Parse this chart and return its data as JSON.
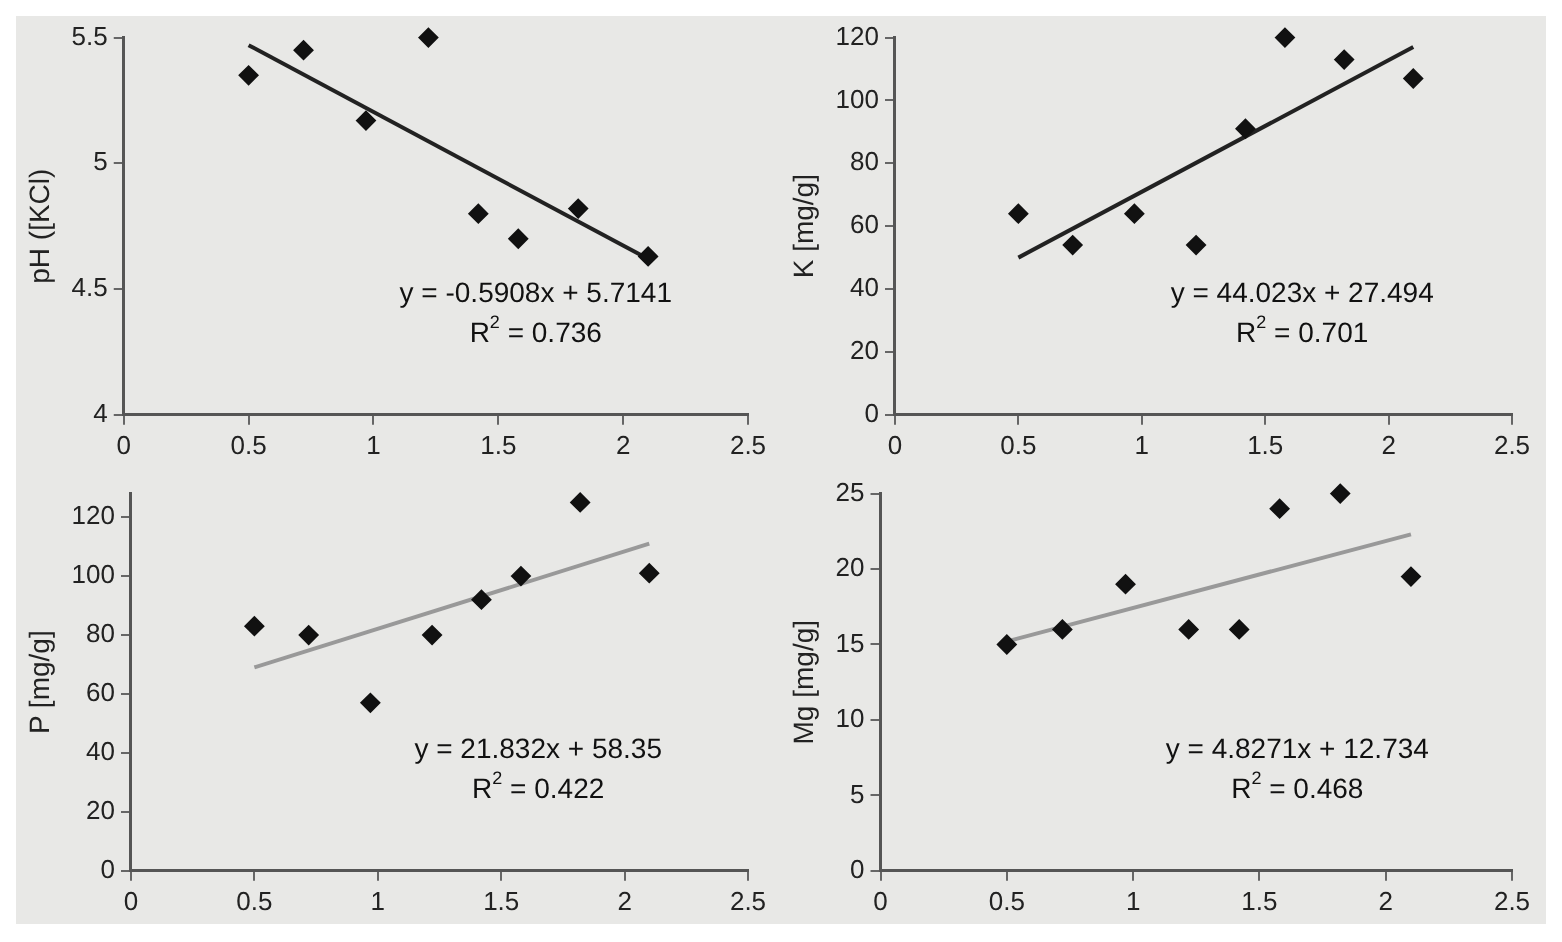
{
  "chart_data": [
    {
      "type": "scatter",
      "ylabel": "pH ([KCl)",
      "xlim": [
        0,
        2.5
      ],
      "xticks": [
        0,
        0.5,
        1,
        1.5,
        2,
        2.5
      ],
      "ylim": [
        4,
        5.5
      ],
      "yticks": [
        4,
        4.5,
        5,
        5.5
      ],
      "grid": false,
      "legend": false,
      "annotations": [
        "y = -0.5908x + 5.7141",
        "R$^{2}$ = 0.736"
      ],
      "series": [
        {
          "marker": "diamond",
          "color": "#111111",
          "x": [
            0.5,
            0.72,
            0.97,
            1.22,
            1.42,
            1.58,
            1.82,
            2.1
          ],
          "values": [
            5.35,
            5.45,
            5.17,
            5.5,
            4.8,
            4.7,
            4.82,
            4.63
          ]
        },
        {
          "type": "line",
          "marker": "none",
          "color": "#222222",
          "x": [
            0.5,
            2.1
          ],
          "values": [
            5.47,
            4.62
          ]
        }
      ]
    },
    {
      "type": "scatter",
      "ylabel": "K [mg/g]",
      "xlim": [
        0,
        2.5
      ],
      "xticks": [
        0,
        0.5,
        1,
        1.5,
        2,
        2.5
      ],
      "ylim": [
        0,
        120
      ],
      "yticks": [
        0,
        20,
        40,
        60,
        80,
        100,
        120
      ],
      "grid": false,
      "legend": false,
      "annotations": [
        "y = 44.023x + 27.494",
        "R$^{2}$ = 0.701"
      ],
      "series": [
        {
          "marker": "diamond",
          "color": "#111111",
          "x": [
            0.5,
            0.72,
            0.97,
            1.22,
            1.42,
            1.58,
            1.82,
            2.1
          ],
          "values": [
            64,
            54,
            64,
            54,
            91,
            120,
            113,
            107
          ]
        },
        {
          "type": "line",
          "marker": "none",
          "color": "#222222",
          "x": [
            0.5,
            2.1
          ],
          "values": [
            50,
            117
          ]
        }
      ]
    },
    {
      "type": "scatter",
      "ylabel": "P [mg/g]",
      "xlim": [
        0,
        2.5
      ],
      "xticks": [
        0,
        0.5,
        1,
        1.5,
        2,
        2.5
      ],
      "ylim": [
        0,
        128
      ],
      "yticks": [
        0,
        20,
        40,
        60,
        80,
        100,
        120
      ],
      "grid": false,
      "legend": false,
      "annotations": [
        "y = 21.832x + 58.35",
        "R$^{2}$ = 0.422"
      ],
      "series": [
        {
          "marker": "diamond",
          "color": "#111111",
          "x": [
            0.5,
            0.72,
            0.97,
            1.22,
            1.42,
            1.58,
            1.82,
            2.1
          ],
          "values": [
            83,
            80,
            57,
            80,
            92,
            100,
            125,
            101
          ]
        },
        {
          "type": "line",
          "marker": "none",
          "color": "#999999",
          "x": [
            0.5,
            2.1
          ],
          "values": [
            69,
            111
          ]
        }
      ]
    },
    {
      "type": "scatter",
      "ylabel": "Mg [mg/g]",
      "xlim": [
        0,
        2.5
      ],
      "xticks": [
        0,
        0.5,
        1,
        1.5,
        2,
        2.5
      ],
      "ylim": [
        0,
        25
      ],
      "yticks": [
        0,
        5,
        10,
        15,
        20,
        25
      ],
      "grid": false,
      "legend": false,
      "annotations": [
        "y = 4.8271x + 12.734",
        "R$^{2}$ = 0.468"
      ],
      "series": [
        {
          "marker": "diamond",
          "color": "#111111",
          "x": [
            0.5,
            0.72,
            0.97,
            1.22,
            1.42,
            1.58,
            1.82,
            2.1
          ],
          "values": [
            15,
            16,
            19,
            16,
            16,
            24,
            25,
            19.5
          ]
        },
        {
          "type": "line",
          "marker": "none",
          "color": "#999999",
          "x": [
            0.5,
            2.1
          ],
          "values": [
            15.2,
            22.3
          ]
        }
      ]
    }
  ]
}
